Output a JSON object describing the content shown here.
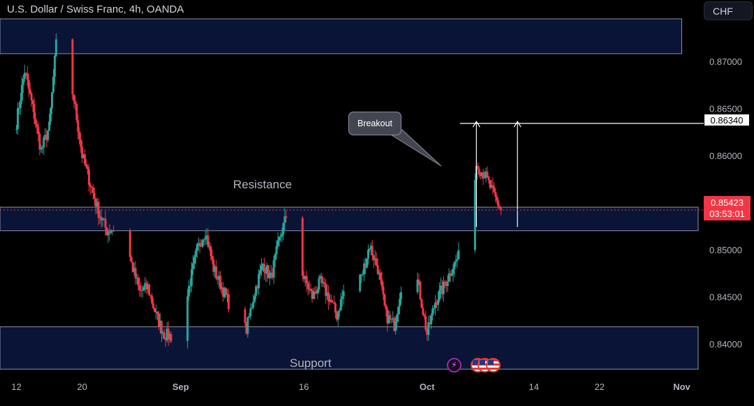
{
  "header": {
    "title": "U.S. Dollar / Swiss Franc, 4h, OANDA",
    "currency": "CHF"
  },
  "price_tags": {
    "target": "0.86340",
    "last_price": "0.85423",
    "countdown": "03:53:01"
  },
  "annotations": {
    "callout": "Breakout",
    "resistance": "Resistance",
    "support": "Support"
  },
  "events": [
    {
      "icon": "lightning-bolt-icon",
      "color": "#9c27b0"
    },
    {
      "icon": "us-flag-icon"
    },
    {
      "icon": "us-flag-icon"
    },
    {
      "icon": "us-flag-icon"
    }
  ],
  "colors": {
    "up": "#26a69a",
    "down": "#f23645",
    "zone_fill": "#0c1740",
    "zone_border": "#8c93a8"
  },
  "chart_data": {
    "type": "candlestick",
    "yticks": [
      0.84,
      0.845,
      0.85,
      0.855,
      0.86,
      0.865,
      0.87
    ],
    "ytick_labels": [
      "0.84000",
      "0.84500",
      "0.85000",
      "0.85500",
      "0.86000",
      "0.86500",
      "0.87000"
    ],
    "xticks": [
      {
        "label": "12",
        "date": "2024-08-12",
        "bold": false
      },
      {
        "label": "20",
        "date": "2024-08-20",
        "bold": false
      },
      {
        "label": "Sep",
        "date": "2024-09-01",
        "bold": true
      },
      {
        "label": "16",
        "date": "2024-09-16",
        "bold": false
      },
      {
        "label": "Oct",
        "date": "2024-10-01",
        "bold": true
      },
      {
        "label": "14",
        "date": "2024-10-14",
        "bold": false
      },
      {
        "label": "22",
        "date": "2024-10-22",
        "bold": false
      },
      {
        "label": "Nov",
        "date": "2024-11-01",
        "bold": true
      }
    ],
    "x_range": [
      "2024-08-10",
      "2024-11-03"
    ],
    "y_range": [
      0.8365,
      0.8765
    ],
    "zones": [
      {
        "name": "upper",
        "from": "2024-08-10",
        "to": "2024-11-01",
        "low": 0.8708,
        "high": 0.8745
      },
      {
        "name": "resistance",
        "from": "2024-08-10",
        "to": "2024-11-03",
        "low": 0.852,
        "high": 0.8545
      },
      {
        "name": "support",
        "from": "2024-08-10",
        "to": "2024-11-03",
        "low": 0.8373,
        "high": 0.8418
      }
    ],
    "target_line": {
      "price": 0.8634,
      "from": "2024-10-05"
    },
    "arrows": [
      {
        "date": "2024-10-07",
        "from": 0.8524,
        "to": 0.8636
      },
      {
        "date": "2024-10-12",
        "from": 0.8524,
        "to": 0.8636
      }
    ],
    "path": [
      [
        "2024-08-12",
        0.8635
      ],
      [
        "2024-08-13",
        0.869
      ],
      [
        "2024-08-14",
        0.865
      ],
      [
        "2024-08-15",
        0.8605
      ],
      [
        "2024-08-16",
        0.863
      ],
      [
        "2024-08-17",
        0.8735
      ],
      [
        "2024-08-18",
        0.87
      ],
      [
        "2024-08-19",
        0.866
      ],
      [
        "2024-08-20",
        0.86
      ],
      [
        "2024-08-21",
        0.857
      ],
      [
        "2024-08-22",
        0.854
      ],
      [
        "2024-08-23",
        0.852
      ],
      [
        "2024-08-25",
        0.8525
      ],
      [
        "2024-08-26",
        0.8485
      ],
      [
        "2024-08-27",
        0.8455
      ],
      [
        "2024-08-28",
        0.846
      ],
      [
        "2024-08-29",
        0.843
      ],
      [
        "2024-08-30",
        0.841
      ],
      [
        "2024-09-01",
        0.8405
      ],
      [
        "2024-09-02",
        0.846
      ],
      [
        "2024-09-03",
        0.85
      ],
      [
        "2024-09-04",
        0.852
      ],
      [
        "2024-09-05",
        0.848
      ],
      [
        "2024-09-06",
        0.846
      ],
      [
        "2024-09-07",
        0.844
      ],
      [
        "2024-09-08",
        0.8425
      ],
      [
        "2024-09-09",
        0.8415
      ],
      [
        "2024-09-10",
        0.8455
      ],
      [
        "2024-09-11",
        0.8485
      ],
      [
        "2024-09-12",
        0.847
      ],
      [
        "2024-09-13",
        0.851
      ],
      [
        "2024-09-14",
        0.854
      ],
      [
        "2024-09-15",
        0.8505
      ],
      [
        "2024-09-16",
        0.847
      ],
      [
        "2024-09-17",
        0.845
      ],
      [
        "2024-09-18",
        0.8465
      ],
      [
        "2024-09-19",
        0.845
      ],
      [
        "2024-09-20",
        0.843
      ],
      [
        "2024-09-21",
        0.846
      ],
      [
        "2024-09-22",
        0.849
      ],
      [
        "2024-09-23",
        0.847
      ],
      [
        "2024-09-24",
        0.8505
      ],
      [
        "2024-09-25",
        0.848
      ],
      [
        "2024-09-26",
        0.843
      ],
      [
        "2024-09-27",
        0.842
      ],
      [
        "2024-09-28",
        0.847
      ],
      [
        "2024-09-29",
        0.85
      ],
      [
        "2024-09-30",
        0.846
      ],
      [
        "2024-10-01",
        0.841
      ],
      [
        "2024-10-02",
        0.8445
      ],
      [
        "2024-10-03",
        0.846
      ],
      [
        "2024-10-04",
        0.848
      ],
      [
        "2024-10-05",
        0.8495
      ],
      [
        "2024-10-06",
        0.853
      ],
      [
        "2024-10-07",
        0.859
      ],
      [
        "2024-10-08",
        0.858
      ],
      [
        "2024-10-09",
        0.856
      ],
      [
        "2024-10-10",
        0.8542
      ]
    ]
  }
}
